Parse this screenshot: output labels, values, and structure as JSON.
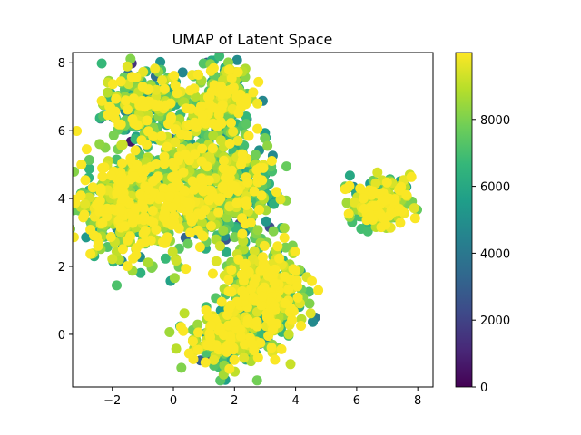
{
  "chart_data": {
    "type": "scatter",
    "title": "UMAP of Latent Space",
    "xlabel": "",
    "ylabel": "",
    "xlim": [
      -3.3,
      8.5
    ],
    "ylim": [
      -1.55,
      8.3
    ],
    "x_ticks": [
      -2,
      0,
      2,
      4,
      6,
      8
    ],
    "x_tick_labels": [
      "−2",
      "0",
      "2",
      "4",
      "6",
      "8"
    ],
    "y_ticks": [
      0,
      2,
      4,
      6,
      8
    ],
    "y_tick_labels": [
      "0",
      "2",
      "4",
      "6",
      "8"
    ],
    "colorbar": {
      "colormap": "viridis",
      "range": [
        0,
        10000
      ],
      "ticks": [
        0,
        2000,
        4000,
        6000,
        8000
      ],
      "tick_labels": [
        "0",
        "2000",
        "4000",
        "6000",
        "8000"
      ]
    },
    "grid": false,
    "marker_color_scale": [
      "#440154",
      "#482878",
      "#3e4a89",
      "#31688e",
      "#26828e",
      "#1f9e89",
      "#35b779",
      "#6ece58",
      "#b5de2b",
      "#fde725"
    ],
    "clusters": [
      {
        "cx": -1.0,
        "cy": 6.8,
        "sx": 0.85,
        "sy": 0.7,
        "n": 260,
        "vmean": 7600,
        "vsd": 2400
      },
      {
        "cx": 1.5,
        "cy": 7.0,
        "sx": 0.7,
        "sy": 0.75,
        "n": 220,
        "vmean": 8200,
        "vsd": 2200
      },
      {
        "cx": -1.5,
        "cy": 3.8,
        "sx": 1.05,
        "sy": 1.0,
        "n": 480,
        "vmean": 8500,
        "vsd": 1800
      },
      {
        "cx": 0.5,
        "cy": 4.5,
        "sx": 1.0,
        "sy": 1.4,
        "n": 420,
        "vmean": 8400,
        "vsd": 2000
      },
      {
        "cx": 2.2,
        "cy": 4.4,
        "sx": 0.8,
        "sy": 1.0,
        "n": 260,
        "vmean": 7200,
        "vsd": 2600
      },
      {
        "cx": 3.0,
        "cy": 1.3,
        "sx": 0.9,
        "sy": 0.9,
        "n": 380,
        "vmean": 8600,
        "vsd": 1900
      },
      {
        "cx": 1.8,
        "cy": -0.1,
        "sx": 0.85,
        "sy": 0.6,
        "n": 260,
        "vmean": 8200,
        "vsd": 2200
      },
      {
        "cx": 6.8,
        "cy": 3.9,
        "sx": 0.65,
        "sy": 0.45,
        "n": 220,
        "vmean": 8400,
        "vsd": 2100
      }
    ]
  }
}
